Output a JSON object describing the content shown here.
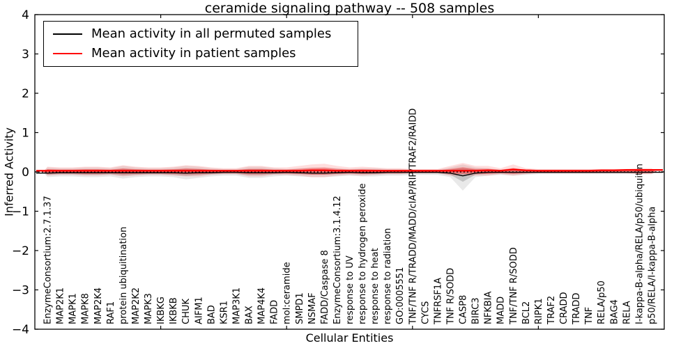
{
  "figure": {
    "background": "#ffffff",
    "frame_color": "#000000"
  },
  "chart_data": {
    "type": "line",
    "title": "ceramide signaling pathway -- 508 samples",
    "xlabel": "Cellular Entities",
    "ylabel": "Inferred Activity",
    "ylim": [
      -4,
      4
    ],
    "xlim": [
      0,
      50
    ],
    "yticks": [
      4,
      3,
      2,
      1,
      0,
      -1,
      -2,
      -3,
      -4
    ],
    "ytick_labels": [
      "4",
      "3",
      "2",
      "1",
      "0",
      "−1",
      "−2",
      "−3",
      "−4"
    ],
    "xticks": [
      10,
      20,
      30,
      40
    ],
    "grid": false,
    "legend_position": "upper left",
    "legend": [
      {
        "label": "Mean activity in all permuted samples",
        "color": "#000000"
      },
      {
        "label": "Mean activity in patient samples",
        "color": "#ff0000"
      }
    ],
    "zero_line": {
      "value": 0,
      "style": "dotted",
      "color": "#000000"
    },
    "entities": [
      "EnzymeConsortium:2.7.1.37",
      "MAP2K1",
      "MAPK1",
      "MAPK8",
      "MAP2K4",
      "RAF1",
      "protein ubiquitination",
      "MAP2K2",
      "MAPK3",
      "IKBKG",
      "IKBKB",
      "CHUK",
      "AIFM1",
      "BAD",
      "KSR1",
      "MAP3K1",
      "BAX",
      "MAP4K4",
      "FADD",
      "mol:ceramide",
      "SMPD1",
      "NSMAF",
      "FADD/Caspase 8",
      "EnzymeConsortium:3.1.4.12",
      "response to UV",
      "response to hydrogen peroxide",
      "response to heat",
      "response to radiation",
      "GO:0005551",
      "TNF/TNF R/TRADD/MADD/cIAP/RIP/TRAF2/RAIDD",
      "CYCS",
      "TNFRSF1A",
      "TNF R/SODD",
      "CASP8",
      "BIRC3",
      "NFKBIA",
      "MADD",
      "TNF/TNF R/SODD",
      "BCL2",
      "RIPK1",
      "TRAF2",
      "CRADD",
      "TRADD",
      "TNF",
      "RELA/p50",
      "BAG4",
      "RELA",
      "I-kappa-B-alpha/RELA/p50/ubiquitin",
      "p50/RELA/I-kappa-B-alpha"
    ],
    "series": [
      {
        "name": "Mean activity in all permuted samples",
        "color": "#000000",
        "values": [
          -0.03,
          -0.02,
          -0.02,
          -0.02,
          -0.02,
          -0.02,
          -0.02,
          -0.02,
          -0.02,
          -0.02,
          -0.02,
          -0.03,
          -0.02,
          -0.02,
          -0.01,
          -0.01,
          -0.02,
          -0.02,
          -0.02,
          -0.01,
          -0.02,
          -0.03,
          -0.03,
          -0.02,
          -0.01,
          -0.02,
          -0.02,
          -0.01,
          -0.01,
          -0.01,
          -0.01,
          -0.01,
          -0.03,
          -0.1,
          -0.03,
          -0.01,
          -0.01,
          -0.01,
          -0.01,
          -0.01,
          -0.01,
          -0.01,
          -0.01,
          -0.01,
          -0.01,
          -0.01,
          -0.01,
          -0.01,
          -0.01
        ]
      },
      {
        "name": "Mean activity in patient samples",
        "color": "#ff0000",
        "values": [
          0.03,
          0.03,
          0.03,
          0.03,
          0.03,
          0.03,
          0.03,
          0.03,
          0.03,
          0.03,
          0.03,
          0.03,
          0.03,
          0.03,
          0.03,
          0.03,
          0.03,
          0.03,
          0.03,
          0.03,
          0.03,
          0.04,
          0.04,
          0.03,
          0.03,
          0.03,
          0.03,
          0.03,
          0.03,
          0.03,
          0.03,
          0.03,
          0.03,
          0.03,
          0.03,
          0.04,
          0.03,
          0.06,
          0.04,
          0.03,
          0.03,
          0.03,
          0.03,
          0.03,
          0.04,
          0.04,
          0.05,
          0.05,
          0.05
        ]
      }
    ],
    "distribution_bands": {
      "permuted": {
        "color": "#000000",
        "opacity": 0.16,
        "up": [
          0.06,
          0.05,
          0.05,
          0.06,
          0.06,
          0.05,
          0.08,
          0.06,
          0.05,
          0.05,
          0.06,
          0.08,
          0.07,
          0.05,
          0.04,
          0.04,
          0.07,
          0.07,
          0.05,
          0.04,
          0.05,
          0.06,
          0.06,
          0.05,
          0.04,
          0.05,
          0.05,
          0.04,
          0.04,
          0.03,
          0.03,
          0.03,
          0.06,
          0.1,
          0.06,
          0.05,
          0.03,
          0.05,
          0.03,
          0.03,
          0.03,
          0.03,
          0.03,
          0.03,
          0.03,
          0.03,
          0.03,
          0.03,
          0.03
        ],
        "down": [
          0.07,
          0.06,
          0.06,
          0.07,
          0.07,
          0.06,
          0.09,
          0.07,
          0.06,
          0.06,
          0.07,
          0.1,
          0.08,
          0.06,
          0.05,
          0.05,
          0.08,
          0.08,
          0.06,
          0.05,
          0.06,
          0.07,
          0.07,
          0.06,
          0.05,
          0.06,
          0.06,
          0.05,
          0.05,
          0.04,
          0.04,
          0.04,
          0.07,
          0.25,
          0.07,
          0.05,
          0.04,
          0.05,
          0.04,
          0.03,
          0.03,
          0.03,
          0.03,
          0.03,
          0.03,
          0.03,
          0.03,
          0.03,
          0.03
        ]
      },
      "patient": {
        "color": "#ff0000",
        "opacity": 0.3,
        "up": [
          0.07,
          0.06,
          0.06,
          0.07,
          0.07,
          0.06,
          0.09,
          0.07,
          0.06,
          0.06,
          0.07,
          0.09,
          0.08,
          0.06,
          0.05,
          0.05,
          0.08,
          0.08,
          0.06,
          0.06,
          0.08,
          0.1,
          0.11,
          0.08,
          0.06,
          0.07,
          0.06,
          0.05,
          0.05,
          0.04,
          0.04,
          0.04,
          0.08,
          0.12,
          0.08,
          0.08,
          0.05,
          0.1,
          0.05,
          0.04,
          0.04,
          0.04,
          0.04,
          0.04,
          0.04,
          0.04,
          0.04,
          0.05,
          0.05
        ],
        "down": [
          0.05,
          0.04,
          0.04,
          0.05,
          0.05,
          0.04,
          0.06,
          0.05,
          0.04,
          0.04,
          0.05,
          0.06,
          0.06,
          0.04,
          0.03,
          0.03,
          0.06,
          0.06,
          0.04,
          0.04,
          0.05,
          0.07,
          0.07,
          0.05,
          0.04,
          0.05,
          0.04,
          0.03,
          0.03,
          0.02,
          0.02,
          0.02,
          0.05,
          0.05,
          0.05,
          0.05,
          0.03,
          0.05,
          0.03,
          0.02,
          0.02,
          0.02,
          0.02,
          0.02,
          0.02,
          0.02,
          0.02,
          0.03,
          0.03
        ]
      }
    }
  }
}
